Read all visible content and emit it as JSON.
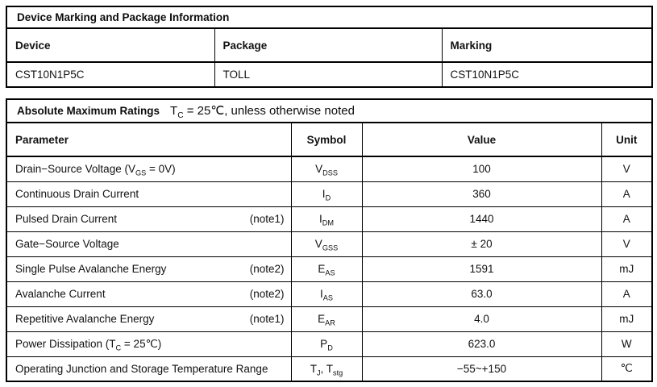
{
  "accent_color": "#c0504d",
  "marking_table": {
    "title": "Device Marking and Package Information",
    "headers": [
      "Device",
      "Package",
      "Marking"
    ],
    "rows": [
      [
        "CST10N1P5C",
        "TOLL",
        "CST10N1P5C"
      ]
    ]
  },
  "ratings_table": {
    "title": "Absolute Maximum Ratings",
    "condition": [
      {
        "t": "T"
      },
      {
        "s": "C"
      },
      {
        "t": " = 25℃, unless otherwise noted"
      }
    ],
    "headers": [
      "Parameter",
      "Symbol",
      "Value",
      "Unit"
    ],
    "rows": [
      {
        "parameter": [
          {
            "t": "Drain−Source Voltage (V"
          },
          {
            "s": "GS"
          },
          {
            "t": " = 0V)"
          }
        ],
        "note": "",
        "symbol": [
          {
            "t": "V"
          },
          {
            "s": "DSS"
          }
        ],
        "value": "100",
        "unit": "V"
      },
      {
        "parameter": [
          {
            "t": "Continuous Drain Current"
          }
        ],
        "note": "",
        "symbol": [
          {
            "t": "I"
          },
          {
            "s": "D"
          }
        ],
        "value": "360",
        "unit": "A"
      },
      {
        "parameter": [
          {
            "t": "Pulsed Drain Current"
          }
        ],
        "note": "(note1)",
        "symbol": [
          {
            "t": "I"
          },
          {
            "s": "DM"
          }
        ],
        "value": "1440",
        "unit": "A"
      },
      {
        "parameter": [
          {
            "t": "Gate−Source Voltage"
          }
        ],
        "note": "",
        "symbol": [
          {
            "t": "V"
          },
          {
            "s": "GSS"
          }
        ],
        "value": "± 20",
        "unit": "V"
      },
      {
        "parameter": [
          {
            "t": "Single Pulse Avalanche Energy"
          }
        ],
        "note": "(note2)",
        "symbol": [
          {
            "t": "E"
          },
          {
            "s": "AS"
          }
        ],
        "value": "1591",
        "unit": "mJ"
      },
      {
        "parameter": [
          {
            "t": "Avalanche Current"
          }
        ],
        "note": "(note2)",
        "symbol": [
          {
            "t": "I"
          },
          {
            "s": "AS"
          }
        ],
        "value": "63.0",
        "unit": "A"
      },
      {
        "parameter": [
          {
            "t": "Repetitive Avalanche Energy"
          }
        ],
        "note": "(note1)",
        "symbol": [
          {
            "t": "E"
          },
          {
            "s": "AR"
          }
        ],
        "value": "4.0",
        "unit": "mJ"
      },
      {
        "parameter": [
          {
            "t": "Power Dissipation (T"
          },
          {
            "s": "C"
          },
          {
            "t": " = 25℃)"
          }
        ],
        "note": "",
        "symbol": [
          {
            "t": "P"
          },
          {
            "s": "D"
          }
        ],
        "value": "623.0",
        "unit": "W"
      },
      {
        "parameter": [
          {
            "t": "Operating Junction and Storage Temperature Range"
          }
        ],
        "note": "",
        "symbol": [
          {
            "t": "T"
          },
          {
            "s": "J"
          },
          {
            "t": ", T"
          },
          {
            "s": "stg"
          }
        ],
        "value": "−55~+150",
        "unit": "℃"
      }
    ]
  }
}
